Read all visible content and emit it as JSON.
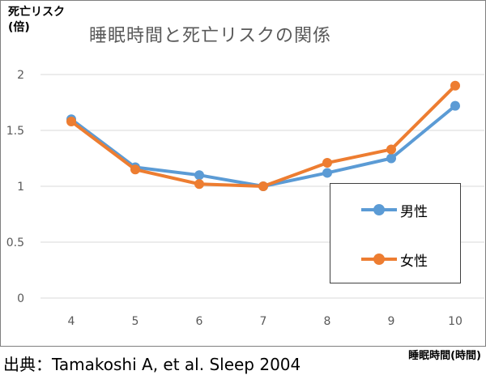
{
  "chart_data": {
    "type": "line",
    "title": "睡眠時間と死亡リスクの関係",
    "ylabel": "死亡リスク(倍)",
    "ylabel_lines": [
      "死亡リスク",
      "(倍)"
    ],
    "xlabel": "睡眠時間(時間)",
    "x": [
      4,
      5,
      6,
      7,
      8,
      9,
      10
    ],
    "ylim": [
      0,
      2
    ],
    "yticks": [
      "0",
      "0.5",
      "1",
      "1.5",
      "2"
    ],
    "grid": true,
    "legend_position": "bottom-right",
    "series": [
      {
        "name": "男性",
        "color": "#5b9bd5",
        "values": [
          1.6,
          1.17,
          1.1,
          1.0,
          1.12,
          1.25,
          1.72
        ]
      },
      {
        "name": "女性",
        "color": "#ed7d31",
        "values": [
          1.58,
          1.15,
          1.02,
          1.0,
          1.21,
          1.33,
          1.9
        ]
      }
    ]
  },
  "source": "出典：Tamakoshi A, et al.   Sleep 2004"
}
